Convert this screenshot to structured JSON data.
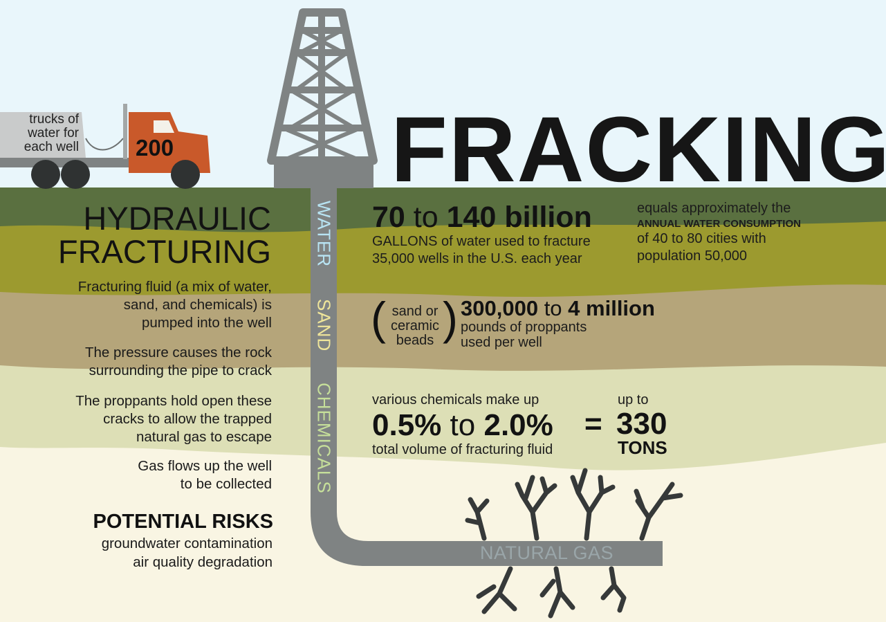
{
  "title": "FRACKING",
  "truck": {
    "label": "trucks of water for each well",
    "count": "200"
  },
  "hydraulic": {
    "line1": "HYDRAULIC",
    "line2": "FRACTURING"
  },
  "steps": [
    [
      "Fracturing fluid (a mix of water,",
      "sand, and chemicals) is",
      "pumped into the well"
    ],
    [
      "The pressure causes the rock",
      "surrounding the pipe to crack"
    ],
    [
      "The proppants hold open these",
      "cracks to allow the trapped",
      "natural gas to escape"
    ],
    [
      "Gas flows up the well",
      "to be collected"
    ]
  ],
  "risks": {
    "heading": "POTENTIAL RISKS",
    "items": [
      "groundwater contamination",
      "air quality degradation"
    ]
  },
  "pipe_labels": {
    "water": "WATER",
    "sand": "SAND",
    "chemicals": "CHEMICALS",
    "natural_gas": "NATURAL GAS"
  },
  "water": {
    "from": "70",
    "to_word": "to",
    "to": "140 billion",
    "line1": "GALLONS of water used to fracture",
    "line2": "35,000 wells in the U.S. each year",
    "equals_line1": "equals approximately the",
    "equals_line2": "ANNUAL WATER CONSUMPTION",
    "equals_line3": "of 40 to 80 cities with",
    "equals_line4": "population 50,000"
  },
  "sand": {
    "paren_open": "(",
    "paren_close": ")",
    "note": [
      "sand or",
      "ceramic",
      "beads"
    ],
    "from": "300,000",
    "to_word": "to",
    "to": "4 million",
    "line1": "pounds of proppants",
    "line2": "used per well"
  },
  "chemicals": {
    "intro": "various chemicals make up",
    "from": "0.5%",
    "to_word": "to",
    "to": "2.0%",
    "line": "total volume of fracturing fluid",
    "equals": "=",
    "up_to": "up to",
    "amount": "330",
    "unit": "TONS"
  },
  "colors": {
    "sky": "#e9f6fb",
    "grass": "#5a7040",
    "olive": "#9c9a2f",
    "tan": "#b5a57a",
    "pale": "#dddfb6",
    "cream": "#f9f5e3",
    "pipe": "#7f8383",
    "truck_cab": "#c9592a",
    "water_label": "#b8e4f3",
    "sand_label": "#efe59a",
    "chemicals_label": "#c6df9a"
  }
}
